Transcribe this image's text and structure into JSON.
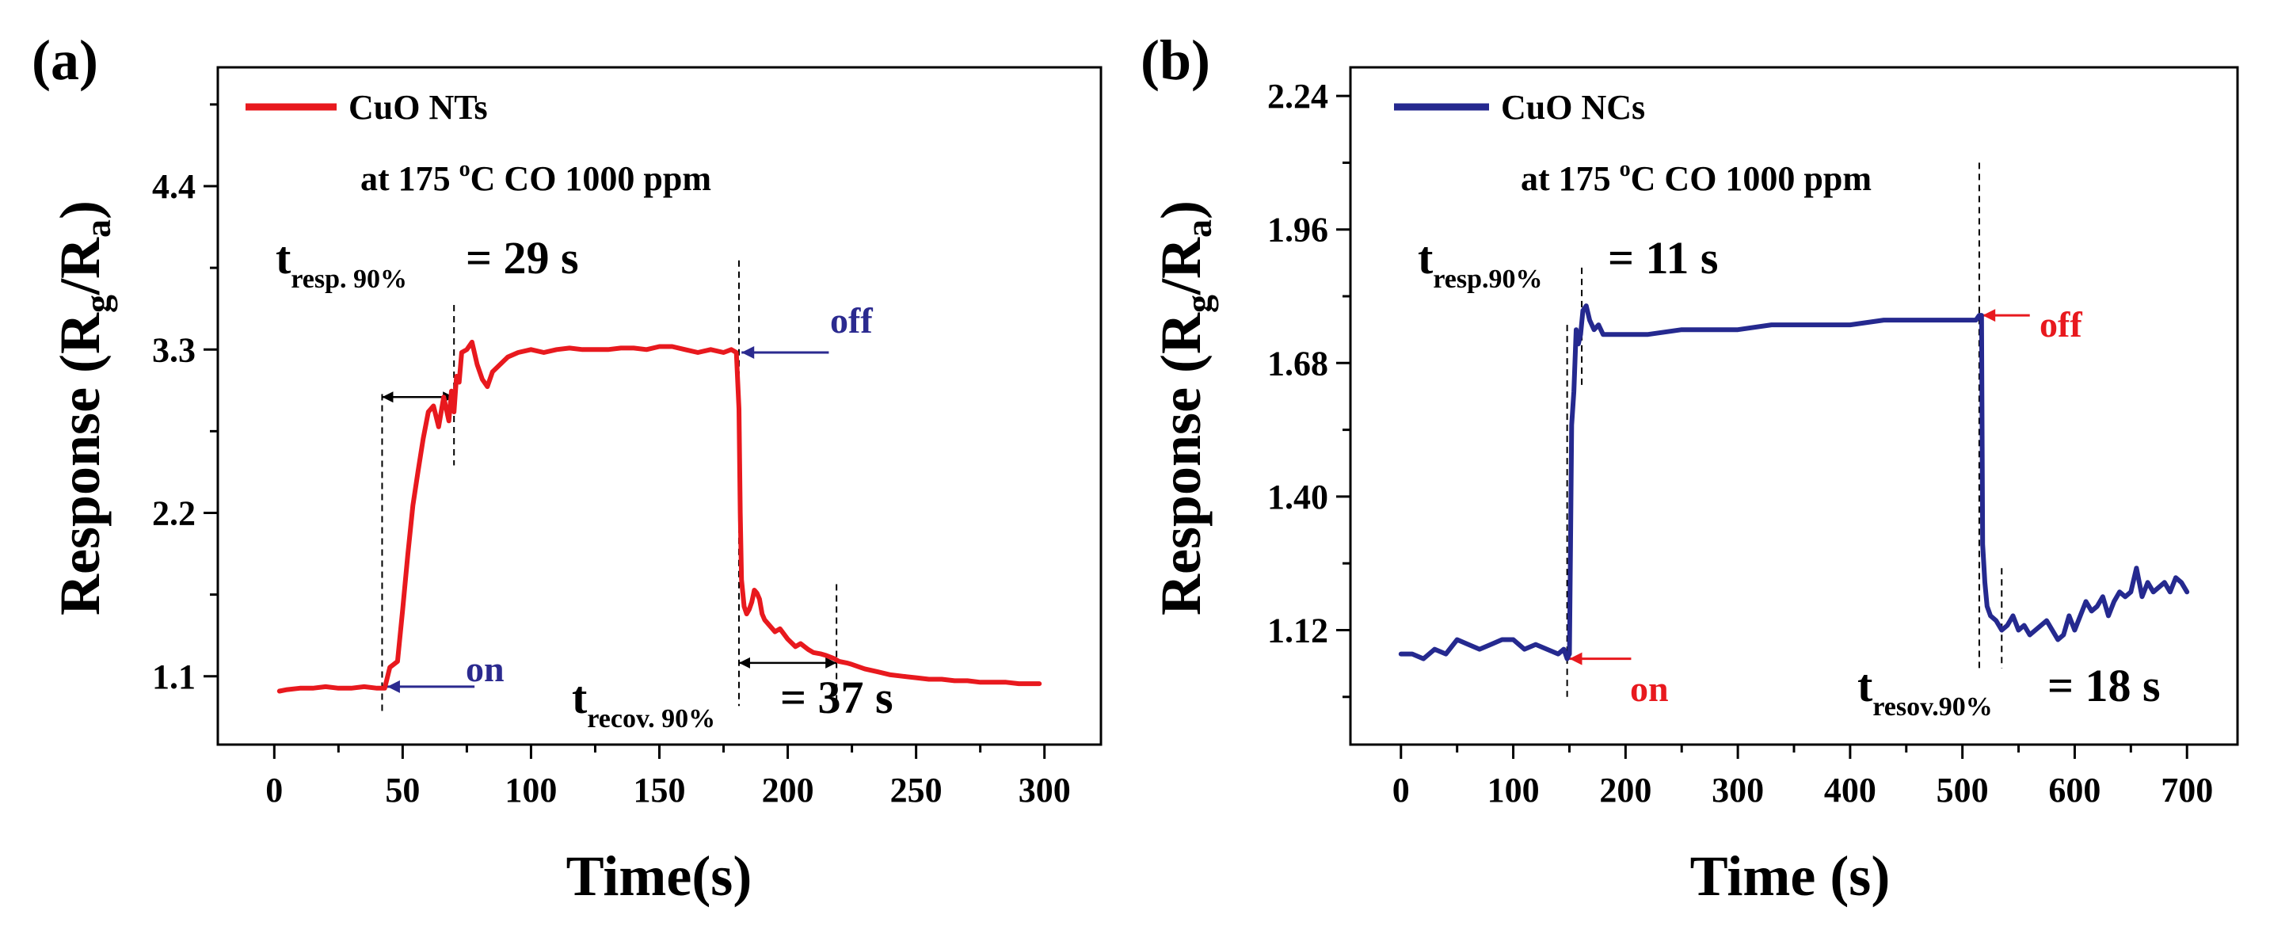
{
  "chart_data": [
    {
      "type": "line",
      "panel_label": "(a)",
      "title": "",
      "xlabel": "Time(s)",
      "ylabel": "Response (R",
      "ylabel_sub_g": "g",
      "ylabel_mid": "/R",
      "ylabel_sub_a": "a",
      "ylabel_end": ")",
      "xlim": [
        -22,
        322
      ],
      "ylim": [
        0.64,
        5.2
      ],
      "xticks": [
        0,
        50,
        100,
        150,
        200,
        250,
        300
      ],
      "xtick_labels": [
        "0",
        "50",
        "100",
        "150",
        "200",
        "250",
        "300"
      ],
      "yticks": [
        1.1,
        2.2,
        3.3,
        4.4
      ],
      "ytick_labels": [
        "1.1",
        "2.2",
        "3.3",
        "4.4"
      ],
      "legend_position": "top-left",
      "series": [
        {
          "name": "CuO NTs",
          "color": "#e8191e",
          "x": [
            2,
            5,
            10,
            15,
            20,
            25,
            30,
            35,
            40,
            43,
            45,
            48,
            50,
            52,
            54,
            56,
            58,
            60,
            62,
            64,
            66,
            68,
            69,
            70,
            71,
            72,
            73,
            75,
            77,
            79,
            81,
            83,
            85,
            88,
            91,
            95,
            100,
            105,
            110,
            115,
            120,
            125,
            130,
            135,
            140,
            145,
            150,
            155,
            160,
            165,
            170,
            175,
            178,
            180,
            181,
            181.5,
            182,
            183,
            184,
            185,
            186,
            187,
            188,
            189,
            190,
            191,
            193,
            195,
            197,
            200,
            203,
            205,
            208,
            210,
            213,
            215,
            218,
            220,
            223,
            225,
            230,
            235,
            240,
            245,
            250,
            255,
            260,
            265,
            270,
            275,
            280,
            285,
            290,
            295,
            298
          ],
          "values": [
            1.0,
            1.01,
            1.02,
            1.02,
            1.03,
            1.02,
            1.02,
            1.03,
            1.02,
            1.02,
            1.16,
            1.2,
            1.55,
            1.92,
            2.25,
            2.48,
            2.7,
            2.88,
            2.92,
            2.78,
            2.98,
            2.82,
            3.02,
            2.88,
            3.12,
            3.08,
            3.28,
            3.3,
            3.35,
            3.2,
            3.1,
            3.05,
            3.15,
            3.2,
            3.25,
            3.28,
            3.3,
            3.28,
            3.3,
            3.31,
            3.3,
            3.3,
            3.3,
            3.31,
            3.31,
            3.3,
            3.32,
            3.32,
            3.3,
            3.28,
            3.3,
            3.28,
            3.3,
            3.28,
            2.9,
            2.2,
            1.75,
            1.57,
            1.52,
            1.55,
            1.6,
            1.68,
            1.66,
            1.62,
            1.52,
            1.48,
            1.44,
            1.4,
            1.42,
            1.35,
            1.3,
            1.32,
            1.28,
            1.26,
            1.25,
            1.24,
            1.22,
            1.2,
            1.19,
            1.18,
            1.15,
            1.13,
            1.11,
            1.1,
            1.09,
            1.08,
            1.08,
            1.07,
            1.07,
            1.06,
            1.06,
            1.06,
            1.05,
            1.05,
            1.05
          ]
        }
      ],
      "annotations": {
        "condition_prefix": "at 175 ",
        "condition_sup": "o",
        "condition_suffix": "C  CO 1000 ppm",
        "resp_t": "t",
        "resp_sub": "resp. 90%",
        "resp_value": "= 29 s",
        "recov_t": "t",
        "recov_sub": "recov. 90%",
        "recov_value": "= 37 s",
        "on_label": "on",
        "off_label": "off",
        "marker_color": "#2b2a8f"
      }
    },
    {
      "type": "line",
      "panel_label": "(b)",
      "title": "",
      "xlabel": "Time (s)",
      "ylabel": "Response (R",
      "ylabel_sub_g": "g",
      "ylabel_mid": "/R",
      "ylabel_sub_a": "a",
      "ylabel_end": ")",
      "xlim": [
        -45,
        745
      ],
      "ylim": [
        0.88,
        2.3
      ],
      "xticks": [
        0,
        100,
        200,
        300,
        400,
        500,
        600,
        700
      ],
      "xtick_labels": [
        "0",
        "100",
        "200",
        "300",
        "400",
        "500",
        "600",
        "700"
      ],
      "yticks": [
        1.12,
        1.4,
        1.68,
        1.96,
        2.24
      ],
      "ytick_labels": [
        "1.12",
        "1.40",
        "1.68",
        "1.96",
        "2.24"
      ],
      "legend_position": "top-left",
      "series": [
        {
          "name": "CuO NCs",
          "color": "#25298f",
          "x": [
            0,
            10,
            20,
            30,
            40,
            50,
            60,
            70,
            80,
            90,
            100,
            110,
            120,
            130,
            140,
            145,
            148,
            150,
            151,
            152,
            154,
            156,
            158,
            160,
            162,
            165,
            168,
            172,
            176,
            180,
            190,
            200,
            220,
            250,
            280,
            300,
            330,
            360,
            400,
            430,
            460,
            490,
            505,
            512,
            515,
            517,
            518,
            520,
            522,
            525,
            530,
            535,
            540,
            545,
            550,
            555,
            560,
            565,
            570,
            575,
            580,
            585,
            590,
            595,
            600,
            605,
            610,
            615,
            620,
            625,
            630,
            635,
            640,
            645,
            650,
            655,
            660,
            665,
            670,
            675,
            680,
            685,
            690,
            695,
            700
          ],
          "values": [
            1.07,
            1.07,
            1.06,
            1.08,
            1.07,
            1.1,
            1.09,
            1.08,
            1.09,
            1.1,
            1.1,
            1.08,
            1.09,
            1.08,
            1.07,
            1.08,
            1.06,
            1.07,
            1.3,
            1.55,
            1.62,
            1.75,
            1.72,
            1.74,
            1.79,
            1.8,
            1.77,
            1.75,
            1.76,
            1.74,
            1.74,
            1.74,
            1.74,
            1.75,
            1.75,
            1.75,
            1.76,
            1.76,
            1.76,
            1.77,
            1.77,
            1.77,
            1.77,
            1.77,
            1.78,
            1.78,
            1.3,
            1.22,
            1.17,
            1.15,
            1.14,
            1.12,
            1.13,
            1.15,
            1.12,
            1.13,
            1.11,
            1.12,
            1.13,
            1.14,
            1.12,
            1.1,
            1.11,
            1.15,
            1.12,
            1.15,
            1.18,
            1.16,
            1.17,
            1.19,
            1.15,
            1.18,
            1.2,
            1.19,
            1.2,
            1.25,
            1.19,
            1.22,
            1.2,
            1.21,
            1.22,
            1.2,
            1.23,
            1.22,
            1.2
          ]
        }
      ],
      "annotations": {
        "condition_prefix": "at 175 ",
        "condition_sup": "o",
        "condition_suffix": "C  CO 1000 ppm",
        "resp_t": "t",
        "resp_sub": "resp.90%",
        "resp_value": "= 11 s",
        "recov_t": "t",
        "recov_sub": "resov.90%",
        "recov_value": "= 18 s",
        "on_label": "on",
        "off_label": "off",
        "marker_color": "#e8191e"
      }
    }
  ]
}
